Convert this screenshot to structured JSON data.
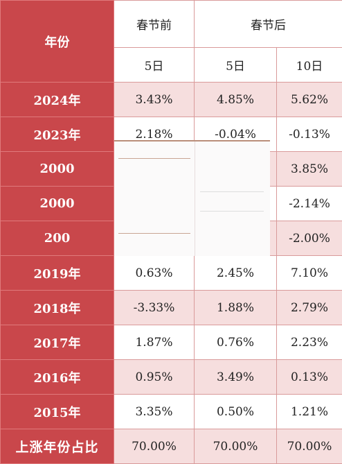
{
  "header": {
    "year_label": "年份",
    "before": "春节前",
    "after": "春节后",
    "days_before_5": "5日",
    "days_after_5": "5日",
    "days_after_10": "10日"
  },
  "rows": [
    {
      "year": "2024年",
      "before5": "3.43%",
      "after5": "4.85%",
      "after10": "5.62%"
    },
    {
      "year": "2023年",
      "before5": "2.18%",
      "after5": "-0.04%",
      "after10": "-0.13%"
    },
    {
      "year": "2000",
      "before5": "",
      "after5": "",
      "after10": "3.85%"
    },
    {
      "year": "2000",
      "before5": "",
      "after5": "",
      "after10": "-2.14%"
    },
    {
      "year": "200",
      "before5": "",
      "after5": "",
      "after10": "-2.00%"
    },
    {
      "year": "2019年",
      "before5": "0.63%",
      "after5": "2.45%",
      "after10": "7.10%"
    },
    {
      "year": "2018年",
      "before5": "-3.33%",
      "after5": "1.88%",
      "after10": "2.79%"
    },
    {
      "year": "2017年",
      "before5": "1.87%",
      "after5": "0.76%",
      "after10": "2.23%"
    },
    {
      "year": "2016年",
      "before5": "0.95%",
      "after5": "3.49%",
      "after10": "0.13%"
    },
    {
      "year": "2015年",
      "before5": "3.35%",
      "after5": "0.50%",
      "after10": "1.21%"
    }
  ],
  "summary": {
    "label": "上涨年份占比",
    "before5": "70.00%",
    "after5": "70.00%",
    "after10": "70.00%"
  },
  "colors": {
    "year_column": "#c9474b",
    "pink_row": "#f6dede",
    "border": "#d99a9a"
  }
}
